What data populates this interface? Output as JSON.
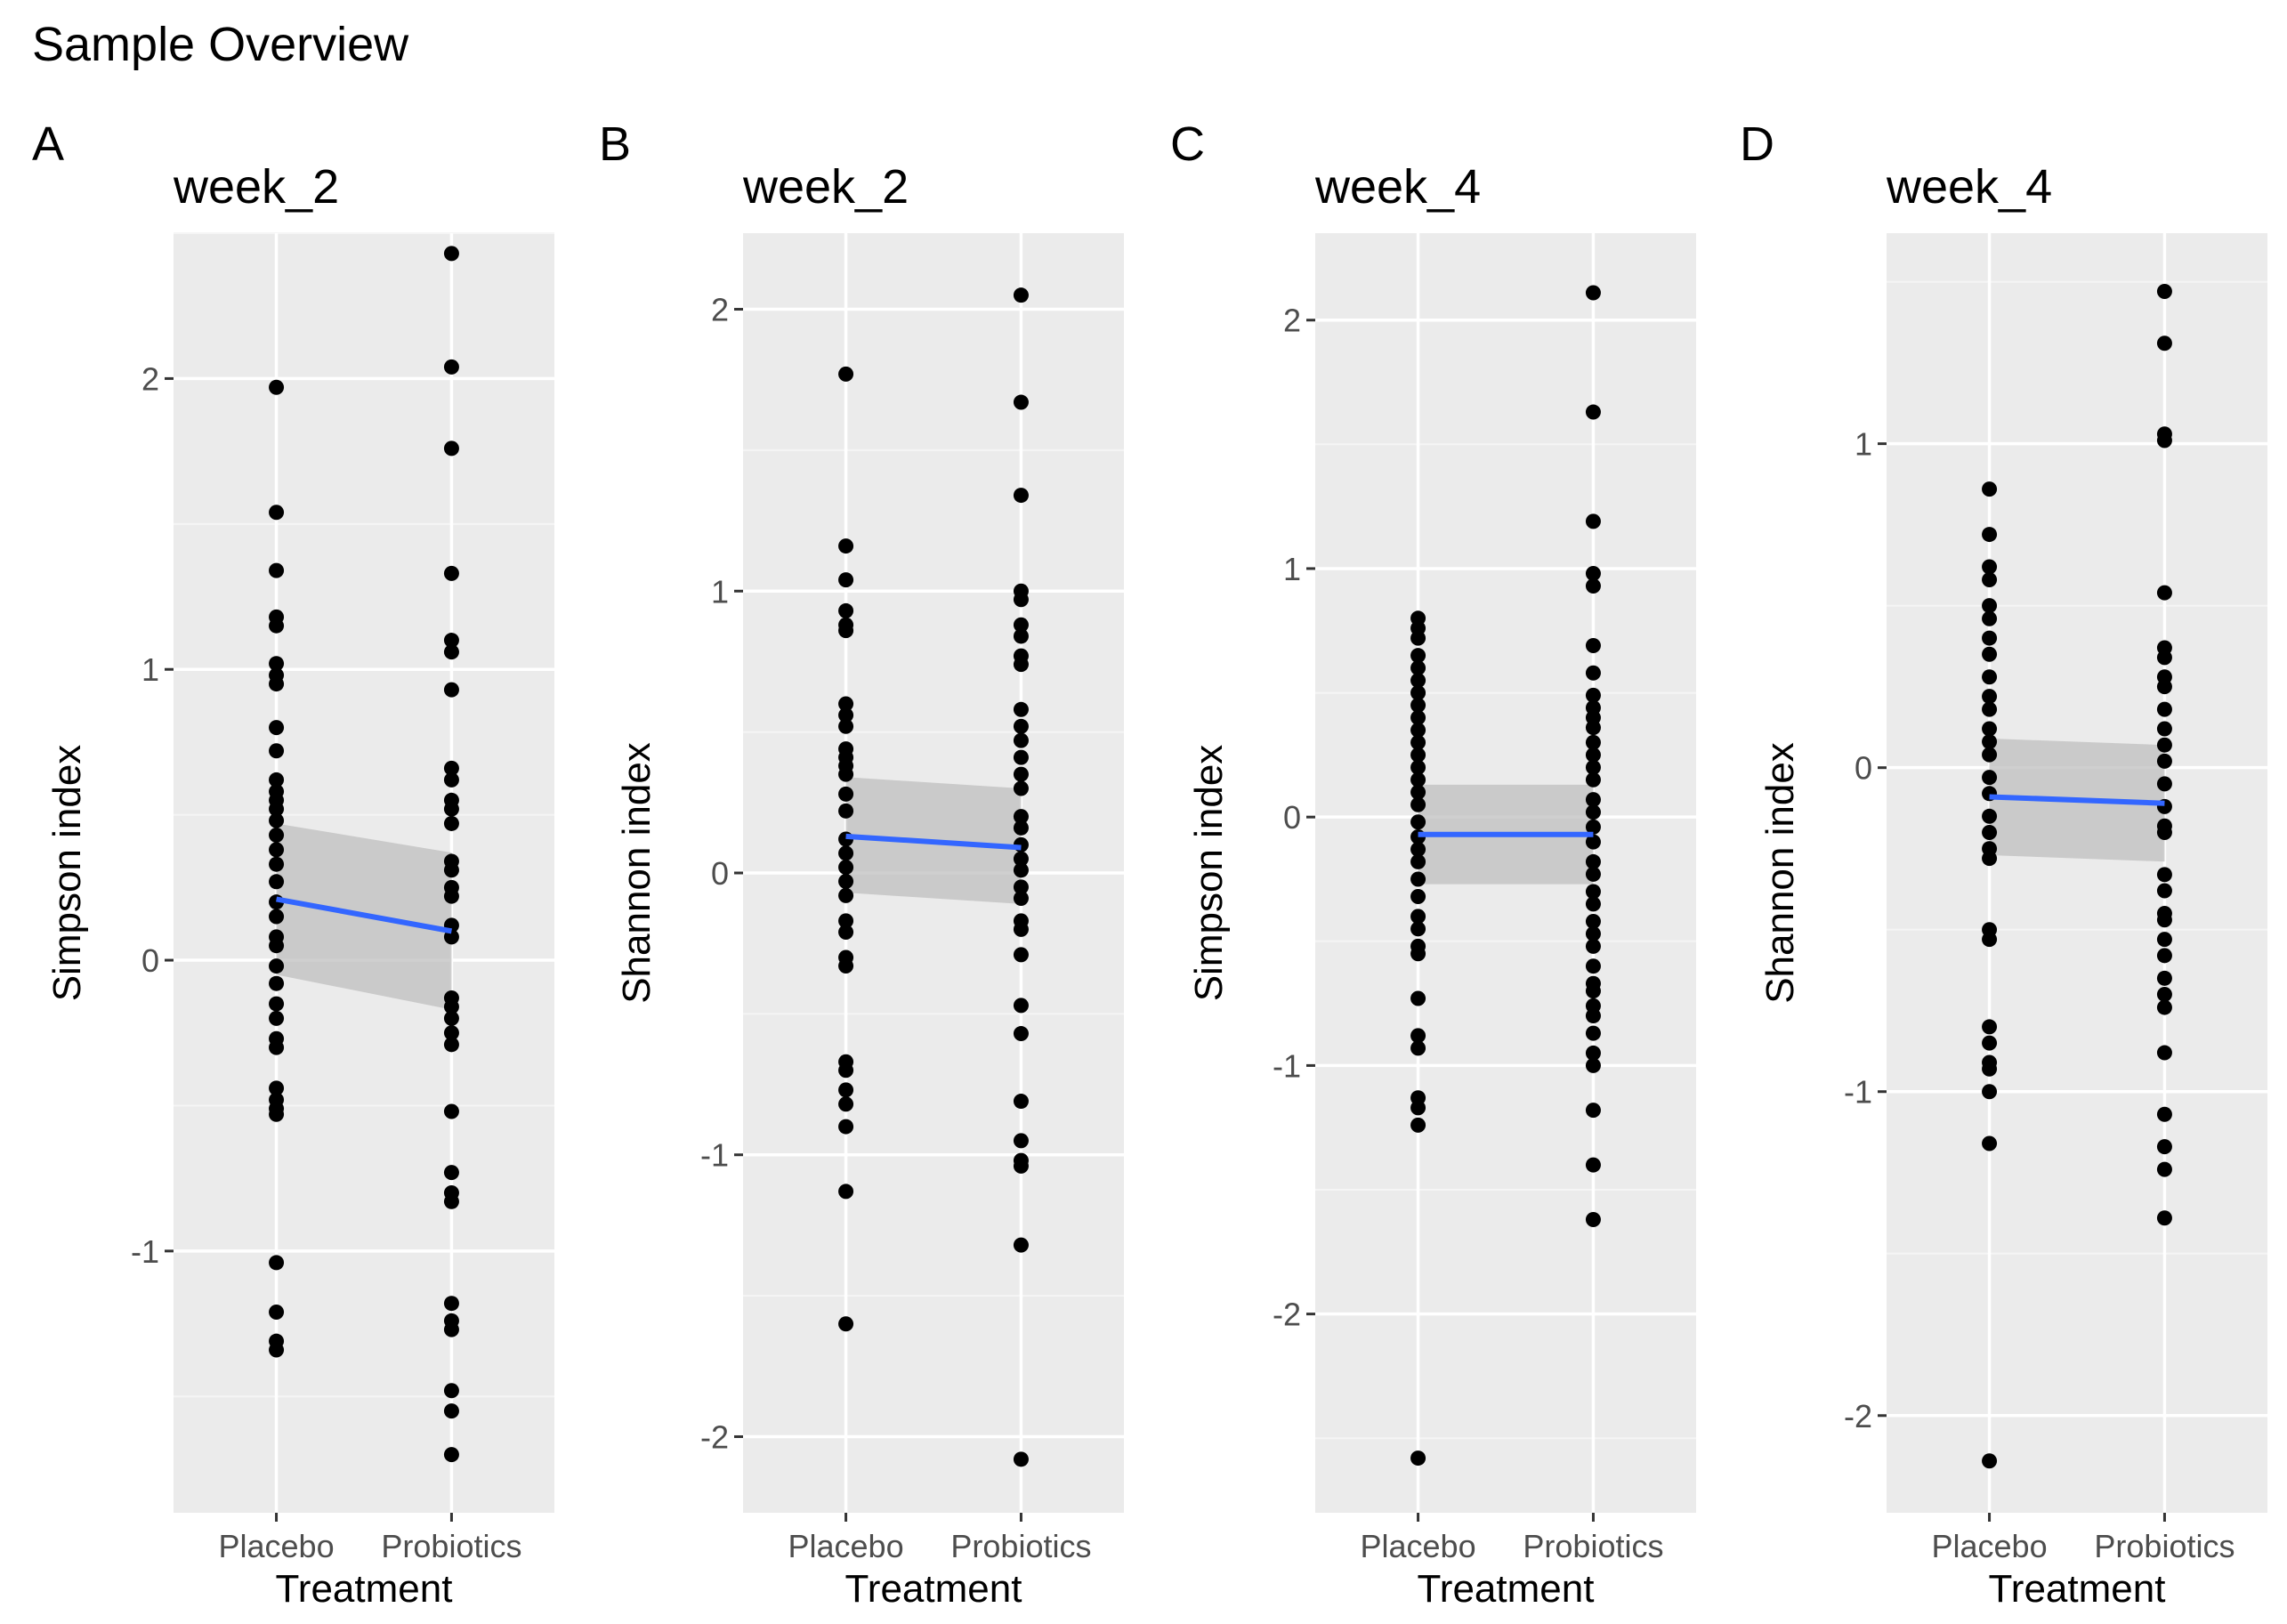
{
  "figure_title": "Sample Overview",
  "colors": {
    "panel_bg": "#EBEBEB",
    "grid_major": "#FFFFFF",
    "grid_minor": "#F5F5F5",
    "point": "#000000",
    "fit_line": "#3366FF",
    "ci_band": "#BFBFBF"
  },
  "chart_data": [
    {
      "type": "scatter",
      "tag": "A",
      "title": "week_2",
      "xlabel": "Treatment",
      "ylabel": "Simpson index",
      "categories": [
        "Placebo",
        "Probiotics"
      ],
      "ylim": [
        -1.9,
        2.5
      ],
      "yticks": [
        -1,
        0,
        1,
        2
      ],
      "yticklabels": [
        "-1",
        "0",
        "1",
        "2"
      ],
      "series": [
        {
          "name": "Placebo",
          "values": [
            1.97,
            1.54,
            1.34,
            1.18,
            1.15,
            1.02,
            0.98,
            0.95,
            0.8,
            0.72,
            0.62,
            0.58,
            0.55,
            0.52,
            0.48,
            0.43,
            0.38,
            0.33,
            0.27,
            0.2,
            0.15,
            0.08,
            0.05,
            -0.02,
            -0.08,
            -0.15,
            -0.2,
            -0.27,
            -0.3,
            -0.44,
            -0.48,
            -0.51,
            -0.53,
            -1.04,
            -1.21,
            -1.31,
            -1.34
          ]
        },
        {
          "name": "Probiotics",
          "values": [
            2.43,
            2.04,
            1.76,
            1.33,
            1.1,
            1.06,
            0.93,
            0.66,
            0.62,
            0.55,
            0.52,
            0.47,
            0.34,
            0.31,
            0.25,
            0.22,
            0.12,
            0.08,
            -0.13,
            -0.16,
            -0.2,
            -0.25,
            -0.29,
            -0.52,
            -0.73,
            -0.8,
            -0.83,
            -1.18,
            -1.24,
            -1.27,
            -1.48,
            -1.55,
            -1.7
          ]
        }
      ],
      "fit": {
        "values": [
          0.21,
          0.1
        ],
        "ci_lower": [
          -0.05,
          -0.17
        ],
        "ci_upper": [
          0.47,
          0.37
        ]
      }
    },
    {
      "type": "scatter",
      "tag": "B",
      "title": "week_2",
      "xlabel": "Treatment",
      "ylabel": "Shannon index",
      "categories": [
        "Placebo",
        "Probiotics"
      ],
      "ylim": [
        -2.27,
        2.27
      ],
      "yticks": [
        -2,
        -1,
        0,
        1,
        2
      ],
      "yticklabels": [
        "-2",
        "-1",
        "0",
        "1",
        "2"
      ],
      "series": [
        {
          "name": "Placebo",
          "values": [
            1.77,
            1.16,
            1.04,
            0.93,
            0.88,
            0.86,
            0.6,
            0.56,
            0.52,
            0.44,
            0.41,
            0.38,
            0.35,
            0.28,
            0.22,
            0.12,
            0.07,
            0.02,
            -0.03,
            -0.08,
            -0.17,
            -0.21,
            -0.3,
            -0.33,
            -0.67,
            -0.7,
            -0.77,
            -0.82,
            -0.9,
            -1.13,
            -1.6
          ]
        },
        {
          "name": "Probiotics",
          "values": [
            2.05,
            1.67,
            1.34,
            1.0,
            0.97,
            0.88,
            0.84,
            0.77,
            0.74,
            0.58,
            0.52,
            0.47,
            0.41,
            0.35,
            0.3,
            0.2,
            0.16,
            0.1,
            0.05,
            0.01,
            -0.05,
            -0.09,
            -0.17,
            -0.2,
            -0.29,
            -0.47,
            -0.57,
            -0.81,
            -0.95,
            -1.02,
            -1.04,
            -1.32,
            -2.08
          ]
        }
      ],
      "fit": {
        "values": [
          0.13,
          0.09
        ],
        "ci_lower": [
          -0.07,
          -0.11
        ],
        "ci_upper": [
          0.34,
          0.3
        ]
      }
    },
    {
      "type": "scatter",
      "tag": "C",
      "title": "week_4",
      "xlabel": "Treatment",
      "ylabel": "Simpson index",
      "categories": [
        "Placebo",
        "Probiotics"
      ],
      "ylim": [
        -2.8,
        2.35
      ],
      "yticks": [
        -2,
        -1,
        0,
        1,
        2
      ],
      "yticklabels": [
        "-2",
        "-1",
        "0",
        "1",
        "2"
      ],
      "series": [
        {
          "name": "Placebo",
          "values": [
            0.8,
            0.76,
            0.72,
            0.65,
            0.6,
            0.55,
            0.5,
            0.45,
            0.4,
            0.35,
            0.3,
            0.25,
            0.2,
            0.15,
            0.1,
            0.05,
            -0.02,
            -0.08,
            -0.13,
            -0.18,
            -0.25,
            -0.32,
            -0.4,
            -0.45,
            -0.52,
            -0.55,
            -0.73,
            -0.88,
            -0.93,
            -1.13,
            -1.17,
            -1.24,
            -2.58
          ]
        },
        {
          "name": "Probiotics",
          "values": [
            2.11,
            1.63,
            1.19,
            0.98,
            0.93,
            0.69,
            0.58,
            0.49,
            0.44,
            0.4,
            0.36,
            0.3,
            0.25,
            0.2,
            0.15,
            0.07,
            0.02,
            -0.04,
            -0.1,
            -0.18,
            -0.23,
            -0.3,
            -0.35,
            -0.42,
            -0.47,
            -0.52,
            -0.6,
            -0.67,
            -0.7,
            -0.76,
            -0.8,
            -0.87,
            -0.95,
            -1.0,
            -1.18,
            -1.4,
            -1.62
          ]
        }
      ],
      "fit": {
        "values": [
          -0.07,
          -0.07
        ],
        "ci_lower": [
          -0.27,
          -0.27
        ],
        "ci_upper": [
          0.13,
          0.13
        ]
      }
    },
    {
      "type": "scatter",
      "tag": "D",
      "title": "week_4",
      "xlabel": "Treatment",
      "ylabel": "Shannon index",
      "categories": [
        "Placebo",
        "Probiotics"
      ],
      "ylim": [
        -2.3,
        1.65
      ],
      "yticks": [
        -2,
        -1,
        0,
        1
      ],
      "yticklabels": [
        "-2",
        "-1",
        "0",
        "1"
      ],
      "series": [
        {
          "name": "Placebo",
          "values": [
            0.86,
            0.72,
            0.62,
            0.58,
            0.5,
            0.46,
            0.4,
            0.35,
            0.28,
            0.22,
            0.18,
            0.12,
            0.08,
            0.04,
            -0.03,
            -0.08,
            -0.15,
            -0.2,
            -0.25,
            -0.28,
            -0.5,
            -0.53,
            -0.8,
            -0.85,
            -0.91,
            -0.93,
            -1.0,
            -1.16,
            -2.14
          ]
        },
        {
          "name": "Probiotics",
          "values": [
            1.47,
            1.31,
            1.03,
            1.01,
            0.54,
            0.37,
            0.34,
            0.28,
            0.25,
            0.18,
            0.12,
            0.07,
            0.02,
            -0.05,
            -0.12,
            -0.18,
            -0.2,
            -0.33,
            -0.38,
            -0.45,
            -0.47,
            -0.53,
            -0.58,
            -0.65,
            -0.7,
            -0.74,
            -0.88,
            -1.07,
            -1.17,
            -1.24,
            -1.39
          ]
        }
      ],
      "fit": {
        "values": [
          -0.09,
          -0.11
        ],
        "ci_lower": [
          -0.27,
          -0.29
        ],
        "ci_upper": [
          0.09,
          0.07
        ]
      }
    }
  ]
}
